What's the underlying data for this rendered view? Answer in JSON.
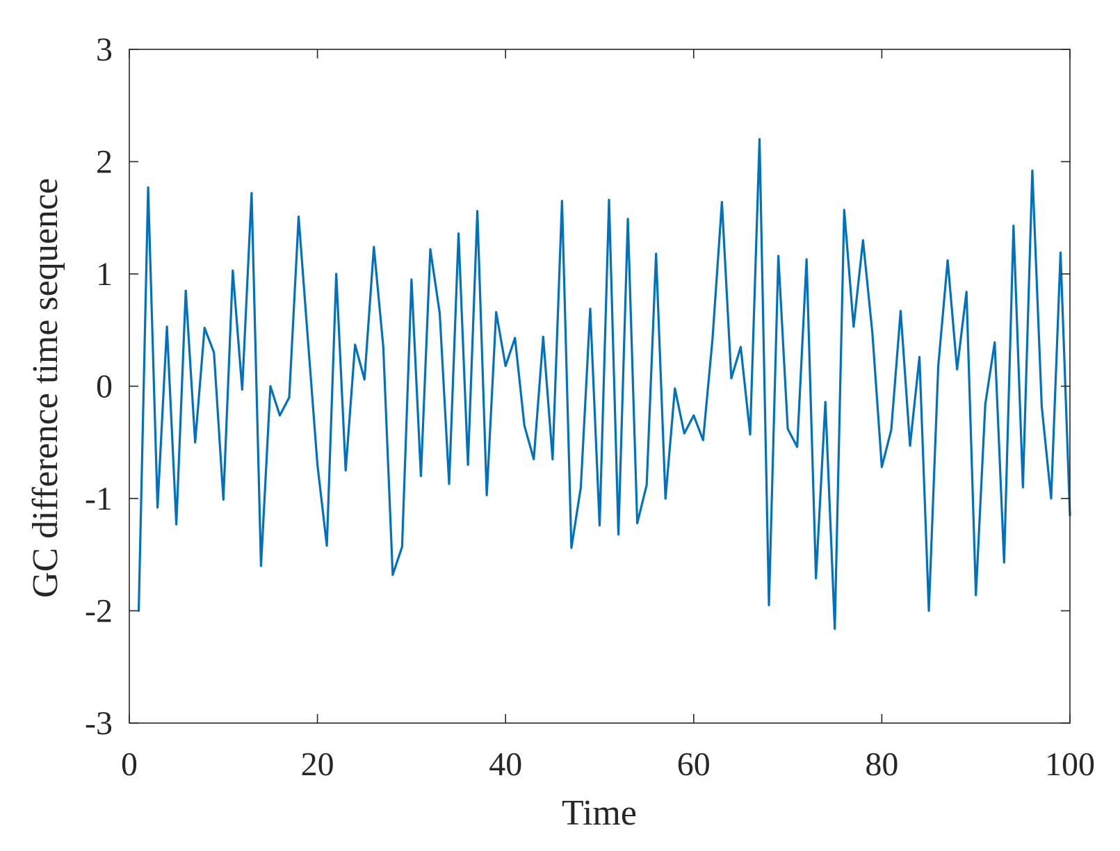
{
  "chart_data": {
    "type": "line",
    "title": "",
    "xlabel": "Time",
    "ylabel": "GC difference time sequence",
    "xlim": [
      0,
      100
    ],
    "ylim": [
      -3,
      3
    ],
    "xticks": [
      0,
      20,
      40,
      60,
      80,
      100
    ],
    "xtick_labels": [
      "0",
      "20",
      "40",
      "60",
      "80",
      "100"
    ],
    "yticks": [
      -3,
      -2,
      -1,
      0,
      1,
      2,
      3
    ],
    "ytick_labels": [
      "-3",
      "-2",
      "-1",
      "0",
      "1",
      "2",
      "3"
    ],
    "grid": false,
    "line_color": "#0072BD",
    "series": [
      {
        "x": [
          1,
          2,
          3,
          4,
          5,
          6,
          7,
          8,
          9,
          10,
          11,
          12,
          13,
          14,
          15,
          16,
          17,
          18,
          19,
          20,
          21,
          22,
          23,
          24,
          25,
          26,
          27,
          28,
          29,
          30,
          31,
          32,
          33,
          34,
          35,
          36,
          37,
          38,
          39,
          40,
          41,
          42,
          43,
          44,
          45,
          46,
          47,
          48,
          49,
          50,
          51,
          52,
          53,
          54,
          55,
          56,
          57,
          58,
          59,
          60,
          61,
          62,
          63,
          64,
          65,
          66,
          67,
          68,
          69,
          70,
          71,
          72,
          73,
          74,
          75,
          76,
          77,
          78,
          79,
          80,
          81,
          82,
          83,
          84,
          85,
          86,
          87,
          88,
          89,
          90,
          91,
          92,
          93,
          94,
          95,
          96,
          97,
          98,
          99,
          100
        ],
        "values": [
          -2.0,
          1.77,
          -1.08,
          0.53,
          -1.23,
          0.85,
          -0.5,
          0.52,
          0.3,
          -1.01,
          1.03,
          -0.03,
          1.72,
          -1.6,
          0.0,
          -0.26,
          -0.1,
          1.51,
          0.4,
          -0.7,
          -1.42,
          1.0,
          -0.75,
          0.37,
          0.06,
          1.24,
          0.35,
          -1.68,
          -1.43,
          0.95,
          -0.8,
          1.22,
          0.65,
          -0.87,
          1.36,
          -0.7,
          1.56,
          -0.97,
          0.66,
          0.18,
          0.43,
          -0.35,
          -0.65,
          0.44,
          -0.65,
          1.65,
          -1.44,
          -0.9,
          0.69,
          -1.24,
          1.66,
          -1.32,
          1.49,
          -1.22,
          -0.88,
          1.18,
          -1.0,
          -0.02,
          -0.42,
          -0.26,
          -0.48,
          0.42,
          1.64,
          0.07,
          0.35,
          -0.43,
          2.2,
          -1.95,
          1.16,
          -0.38,
          -0.54,
          1.13,
          -1.71,
          -0.14,
          -2.16,
          1.57,
          0.53,
          1.3,
          0.47,
          -0.72,
          -0.39,
          0.67,
          -0.53,
          0.26,
          -2.0,
          0.18,
          1.12,
          0.15,
          0.84,
          -1.86,
          -0.16,
          0.39,
          -1.57,
          1.43,
          -0.9,
          1.92,
          -0.18,
          -1.0,
          1.19,
          -1.15
        ]
      }
    ]
  }
}
